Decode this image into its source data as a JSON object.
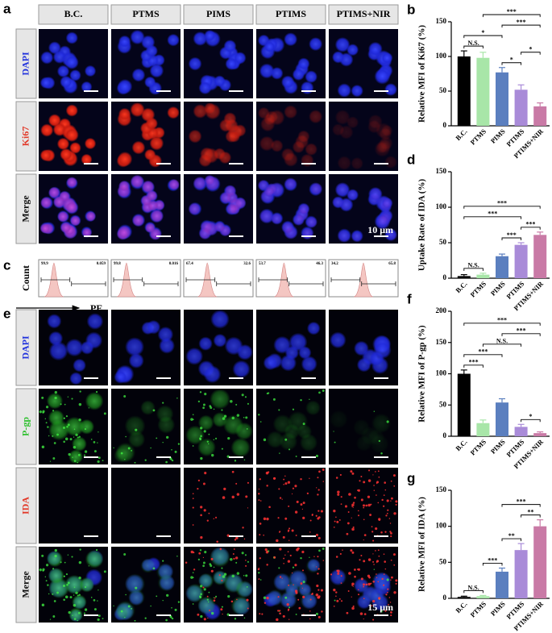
{
  "panel_a": {
    "label": "a",
    "columns": [
      "B.C.",
      "PTMS",
      "PIMS",
      "PTIMS",
      "PTIMS+NIR"
    ],
    "rows": [
      "DAPI",
      "Ki67",
      "Merge"
    ],
    "scale_bar": "10 μm"
  },
  "panel_c": {
    "label": "c",
    "y_label": "Count",
    "x_label": "PE",
    "gate_values": [
      [
        "99.9",
        "0.059"
      ],
      [
        "99.8",
        "0.016"
      ],
      [
        "67.4",
        "32.6"
      ],
      [
        "53.7",
        "46.3"
      ],
      [
        "34.2",
        "65.8"
      ]
    ]
  },
  "panel_e": {
    "label": "e",
    "rows": [
      "DAPI",
      "P-gp",
      "IDA",
      "Merge"
    ],
    "scale_bar": "15 μm"
  },
  "chart_data": [
    {
      "panel": "b",
      "type": "bar",
      "y_label": "Relative MFI of Ki67 (%)",
      "categories": [
        "B.C.",
        "PTMS",
        "PIMS",
        "PTIMS",
        "PTIMS+NIR"
      ],
      "values": [
        100,
        98,
        77,
        52,
        28
      ],
      "errors": [
        8,
        8,
        7,
        7,
        5
      ],
      "colors": [
        "#000000",
        "#a8e6a8",
        "#5b7fbf",
        "#a98bd8",
        "#c97aa6"
      ],
      "ylim": [
        0,
        150
      ],
      "yticks": [
        0,
        50,
        100,
        150
      ],
      "significance": [
        {
          "from": 0,
          "to": 1,
          "label": "N.S."
        },
        {
          "from": 2,
          "to": 3,
          "label": "*"
        },
        {
          "from": 3,
          "to": 4,
          "label": "*"
        },
        {
          "from": 0,
          "to": 2,
          "label": "*"
        },
        {
          "from": 2,
          "to": 4,
          "label": "***"
        },
        {
          "from": 1,
          "to": 4,
          "label": "***"
        }
      ]
    },
    {
      "panel": "d",
      "type": "bar",
      "y_label": "Uptake Rate of IDA (%)",
      "categories": [
        "B.C.",
        "PTMS",
        "PIMS",
        "PTIMS",
        "PTIMS+NIR"
      ],
      "values": [
        3,
        5,
        31,
        47,
        61
      ],
      "errors": [
        2,
        2,
        3,
        3,
        4
      ],
      "colors": [
        "#000000",
        "#a8e6a8",
        "#5b7fbf",
        "#a98bd8",
        "#c97aa6"
      ],
      "ylim": [
        0,
        150
      ],
      "yticks": [
        0,
        50,
        100,
        150
      ],
      "significance": [
        {
          "from": 0,
          "to": 1,
          "label": "N.S."
        },
        {
          "from": 2,
          "to": 3,
          "label": "***"
        },
        {
          "from": 3,
          "to": 4,
          "label": "***"
        },
        {
          "from": 0,
          "to": 3,
          "label": "***"
        },
        {
          "from": 0,
          "to": 4,
          "label": "***"
        }
      ]
    },
    {
      "panel": "f",
      "type": "bar",
      "y_label": "Relative MFI of P-gp (%)",
      "categories": [
        "B.C.",
        "PTMS",
        "PIMS",
        "PTIMS",
        "PTIMS+NIR"
      ],
      "values": [
        100,
        21,
        54,
        15,
        5
      ],
      "errors": [
        6,
        5,
        6,
        4,
        2
      ],
      "colors": [
        "#000000",
        "#a8e6a8",
        "#5b7fbf",
        "#a98bd8",
        "#c97aa6"
      ],
      "ylim": [
        0,
        200
      ],
      "yticks": [
        0,
        50,
        100,
        150,
        200
      ],
      "significance": [
        {
          "from": 0,
          "to": 1,
          "label": "***"
        },
        {
          "from": 3,
          "to": 4,
          "label": "*"
        },
        {
          "from": 0,
          "to": 2,
          "label": "***"
        },
        {
          "from": 1,
          "to": 3,
          "label": "N.S."
        },
        {
          "from": 2,
          "to": 4,
          "label": "***"
        },
        {
          "from": 0,
          "to": 4,
          "label": "***"
        }
      ]
    },
    {
      "panel": "g",
      "type": "bar",
      "y_label": "Relative MFI of IDA (%)",
      "categories": [
        "B.C.",
        "PTMS",
        "PIMS",
        "PTIMS",
        "PTIMS+NIR"
      ],
      "values": [
        2,
        3,
        37,
        67,
        100
      ],
      "errors": [
        1,
        1,
        5,
        9,
        9
      ],
      "colors": [
        "#000000",
        "#a8e6a8",
        "#5b7fbf",
        "#a98bd8",
        "#c97aa6"
      ],
      "ylim": [
        0,
        150
      ],
      "yticks": [
        0,
        50,
        100,
        150
      ],
      "significance": [
        {
          "from": 0,
          "to": 1,
          "label": "N.S."
        },
        {
          "from": 1,
          "to": 2,
          "label": "***"
        },
        {
          "from": 2,
          "to": 3,
          "label": "**"
        },
        {
          "from": 3,
          "to": 4,
          "label": "**"
        },
        {
          "from": 2,
          "to": 4,
          "label": "***"
        }
      ]
    }
  ]
}
